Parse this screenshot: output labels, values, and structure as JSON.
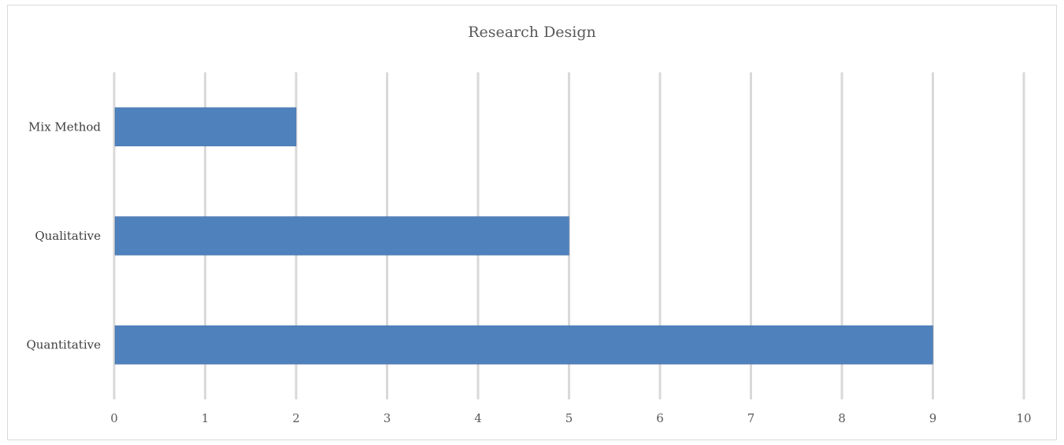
{
  "chart_data": {
    "type": "bar",
    "orientation": "horizontal",
    "title": "Research Design",
    "categories": [
      "Quantitative",
      "Qualitative",
      "Mix Method"
    ],
    "values": [
      9,
      5,
      2
    ],
    "xlim": [
      0,
      10
    ],
    "xticks": [
      "0",
      "1",
      "2",
      "3",
      "4",
      "5",
      "6",
      "7",
      "8",
      "9",
      "10"
    ],
    "grid": "vertical",
    "legend": "none",
    "bar_color": "#4f81bd"
  }
}
